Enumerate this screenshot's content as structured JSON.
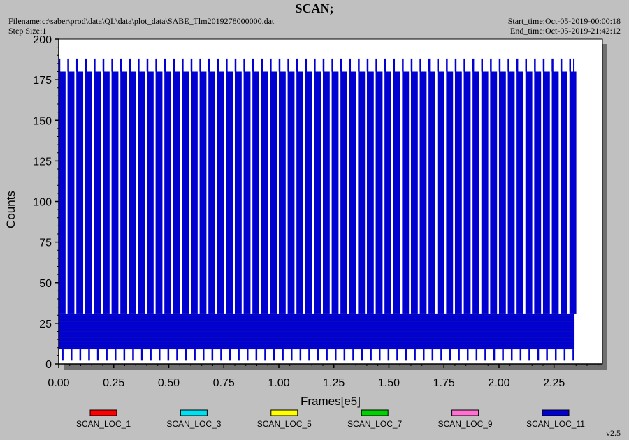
{
  "header": {
    "title": "SCAN;",
    "filename": "Filename:c:\\saber\\prod\\data\\QL\\data\\plot_data\\SABE_Tlm2019278000000.dat",
    "step_size": "Step Size:1",
    "start_time": "Start_time:Oct-05-2019-00:00:18",
    "end_time": "End_time:Oct-05-2019-21:42:12"
  },
  "version": "v2.5",
  "chart_data": {
    "type": "line",
    "title": "SCAN;",
    "xlabel": "Frames[e5]",
    "ylabel": "Counts",
    "xlim": [
      0,
      2.47
    ],
    "ylim": [
      0,
      200
    ],
    "x_ticks": [
      "0.00",
      "0.25",
      "0.50",
      "0.75",
      "1.00",
      "1.25",
      "1.50",
      "1.75",
      "2.00",
      "2.25"
    ],
    "y_ticks": [
      "0",
      "25",
      "50",
      "75",
      "100",
      "125",
      "150",
      "175",
      "200"
    ],
    "grid": false,
    "legend_position": "bottom",
    "x_range": [
      0,
      2.34
    ],
    "pattern": {
      "scan_period": 0.04,
      "scan_count": 59,
      "band_low": 9,
      "band_high": 31,
      "plateau": 180,
      "peak": 188,
      "min": 2
    },
    "series": [
      {
        "name": "SCAN_LOC_1",
        "color": "#ff0000"
      },
      {
        "name": "SCAN_LOC_3",
        "color": "#00e0f0"
      },
      {
        "name": "SCAN_LOC_5",
        "color": "#ffff00"
      },
      {
        "name": "SCAN_LOC_7",
        "color": "#00d000"
      },
      {
        "name": "SCAN_LOC_9",
        "color": "#ff70d0"
      },
      {
        "name": "SCAN_LOC_11",
        "color": "#0000d0"
      }
    ]
  }
}
